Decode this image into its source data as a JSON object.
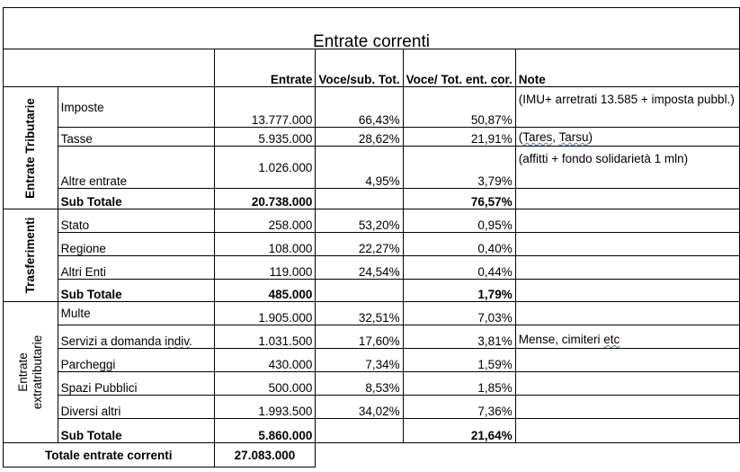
{
  "title": "Entrate correnti",
  "headers": {
    "entrate": "Entrate",
    "voce_sub": "Voce/sub. Tot.",
    "voce_tot": "Voce/ Tot. ent. cor.",
    "note": "Note"
  },
  "groups": {
    "tributarie": "Entrate Tributarie",
    "trasferimenti": "Trasferimenti",
    "extratributarie_line1": "Entrate",
    "extratributarie_line2": "extratributarie"
  },
  "rows": {
    "imposte": {
      "label": "Imposte",
      "entrate": "13.777.000",
      "voce_sub": "66,43%",
      "voce_tot": "50,87%",
      "note": "(IMU+ arretrati 13.585 + imposta pubbl.)"
    },
    "tasse": {
      "label": "Tasse",
      "entrate": "5.935.000",
      "voce_sub": "28,62%",
      "voce_tot": "21,91%",
      "note": "(Tares, Tarsu)"
    },
    "altre_entrate": {
      "label": "Altre entrate",
      "entrate": "1.026.000",
      "voce_sub": "4,95%",
      "voce_tot": "3,79%",
      "note": "(affitti + fondo solidarietà 1 mln)"
    },
    "sub_tributarie": {
      "label": "Sub Totale",
      "entrate": "20.738.000",
      "voce_tot": "76,57%"
    },
    "stato": {
      "label": "Stato",
      "entrate": "258.000",
      "voce_sub": "53,20%",
      "voce_tot": "0,95%"
    },
    "regione": {
      "label": "Regione",
      "entrate": "108.000",
      "voce_sub": "22,27%",
      "voce_tot": "0,40%"
    },
    "altri_enti": {
      "label": "Altri Enti",
      "entrate": "119.000",
      "voce_sub": "24,54%",
      "voce_tot": "0,44%"
    },
    "sub_trasferimenti": {
      "label": "Sub Totale",
      "entrate": "485.000",
      "voce_tot": "1,79%"
    },
    "multe": {
      "label": "Multe",
      "entrate": "1.905.000",
      "voce_sub": "32,51%",
      "voce_tot": "7,03%"
    },
    "servizi": {
      "label": "Servizi a domanda indiv.",
      "entrate": "1.031.500",
      "voce_sub": "17,60%",
      "voce_tot": "3,81%",
      "note": "Mense, cimiteri etc"
    },
    "parcheggi": {
      "label": "Parcheggi",
      "entrate": "430.000",
      "voce_sub": "7,34%",
      "voce_tot": "1,59%"
    },
    "spazi": {
      "label": "Spazi Pubblici",
      "entrate": "500.000",
      "voce_sub": "8,53%",
      "voce_tot": "1,85%"
    },
    "diversi": {
      "label": "Diversi altri",
      "entrate": "1.993.500",
      "voce_sub": "34,02%",
      "voce_tot": "7,36%"
    },
    "sub_extra": {
      "label": "Sub Totale",
      "entrate": "5.860.000",
      "voce_tot": "21,64%"
    }
  },
  "total": {
    "label": "Totale entrate correnti",
    "entrate": "27.083.000"
  }
}
